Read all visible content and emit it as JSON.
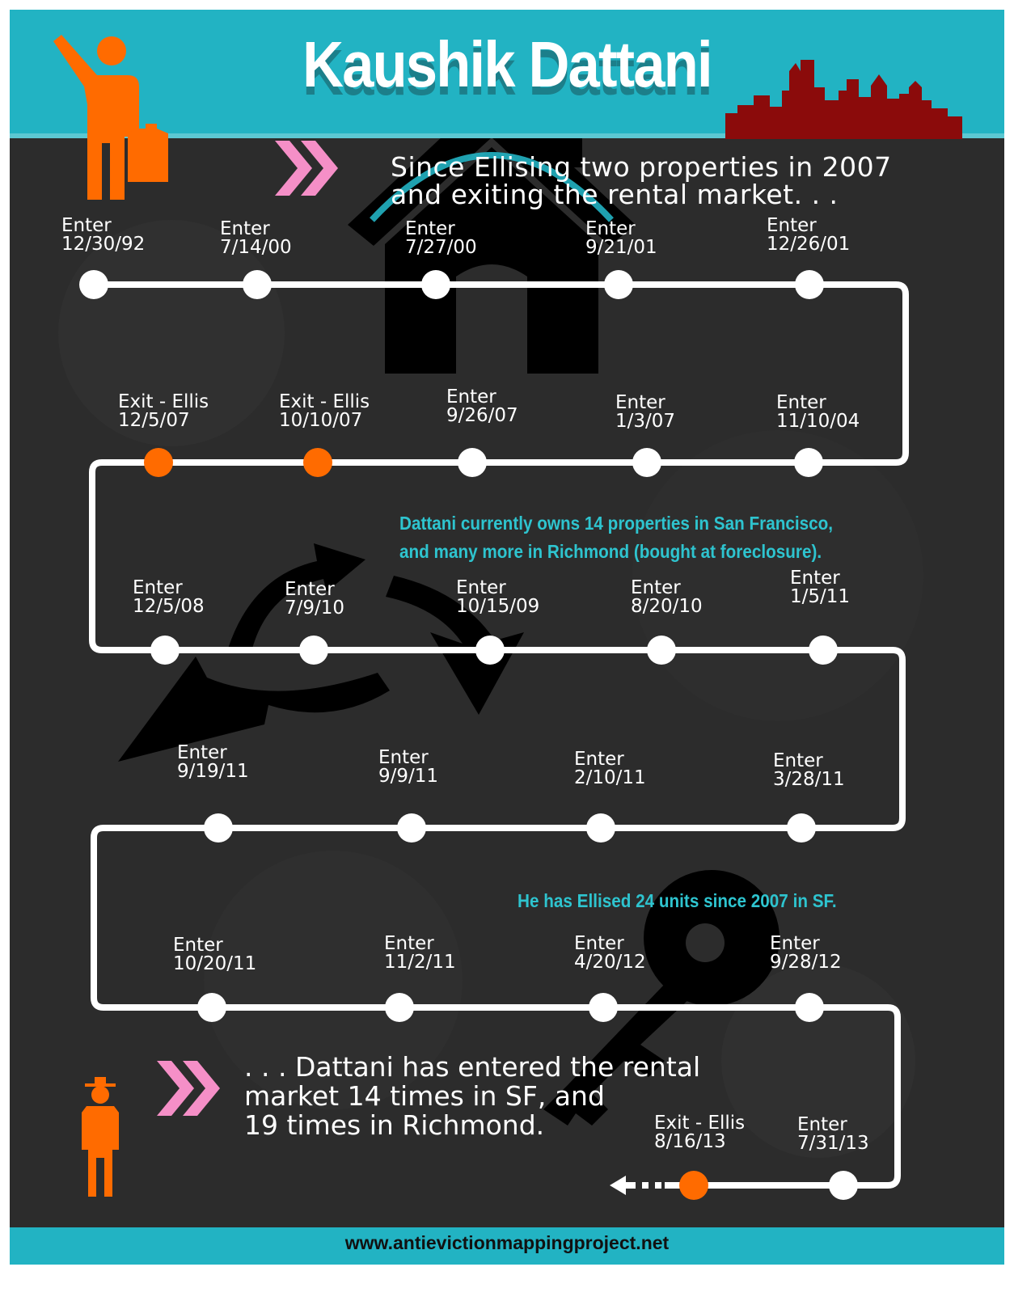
{
  "title": "Kaushik Dattani",
  "intro_text": "Since Ellising two properties in 2007\nand exiting the rental market. . .",
  "note_properties": "Dattani currently owns 14 properties in San Francisco,\nand many more in Richmond (bought at foreclosure).",
  "note_units": "He has Ellised 24 units since 2007 in SF.",
  "outro_text": ". . . Dattani has entered the rental\nmarket 14 times in SF, and\n19 times in Richmond.",
  "footer_url": "www.antievictionmappingproject.net",
  "colors": {
    "accent": "#22b3c3",
    "exit": "#ff6b00",
    "note": "#2ec4cf",
    "arrow": "#f58fc7",
    "skyline": "#8b0b0b",
    "figure": "#ff6b00"
  },
  "icons": [
    "traveler-icon",
    "house-icon",
    "recycle-arrows-icon",
    "key-icon",
    "skyline-icon",
    "man-with-hat-icon",
    "double-chevron-icon"
  ],
  "events": [
    {
      "type": "Enter",
      "date": "12/30/92"
    },
    {
      "type": "Enter",
      "date": "7/14/00"
    },
    {
      "type": "Enter",
      "date": "7/27/00"
    },
    {
      "type": "Enter",
      "date": "9/21/01"
    },
    {
      "type": "Enter",
      "date": "12/26/01"
    },
    {
      "type": "Enter",
      "date": "11/10/04"
    },
    {
      "type": "Enter",
      "date": "1/3/07"
    },
    {
      "type": "Enter",
      "date": "9/26/07"
    },
    {
      "type": "Exit - Ellis",
      "date": "10/10/07"
    },
    {
      "type": "Exit - Ellis",
      "date": "12/5/07"
    },
    {
      "type": "Enter",
      "date": "12/5/08"
    },
    {
      "type": "Enter",
      "date": "7/9/10"
    },
    {
      "type": "Enter",
      "date": "10/15/09"
    },
    {
      "type": "Enter",
      "date": "8/20/10"
    },
    {
      "type": "Enter",
      "date": "1/5/11"
    },
    {
      "type": "Enter",
      "date": "3/28/11"
    },
    {
      "type": "Enter",
      "date": "2/10/11"
    },
    {
      "type": "Enter",
      "date": "9/9/11"
    },
    {
      "type": "Enter",
      "date": "9/19/11"
    },
    {
      "type": "Enter",
      "date": "10/20/11"
    },
    {
      "type": "Enter",
      "date": "11/2/11"
    },
    {
      "type": "Enter",
      "date": "4/20/12"
    },
    {
      "type": "Enter",
      "date": "9/28/12"
    },
    {
      "type": "Enter",
      "date": "7/31/13"
    },
    {
      "type": "Exit - Ellis",
      "date": "8/16/13"
    }
  ]
}
